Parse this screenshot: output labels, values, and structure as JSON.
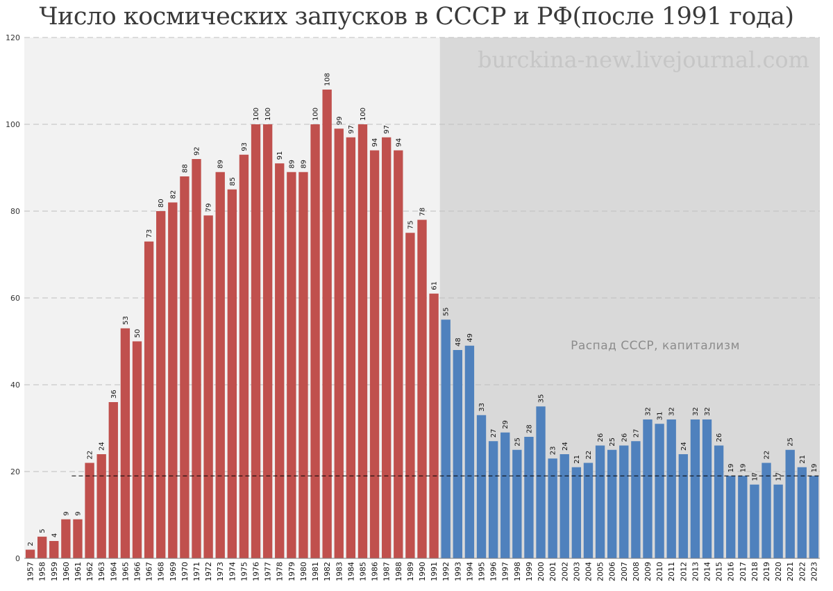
{
  "title": "Число космических запусков в СССР и РФ(после 1991 года)",
  "watermark": "burckina-new.livejournal.com",
  "annotation": "Распад СССР, капитализм",
  "colors": {
    "ussr_bar": "#c0504d",
    "rf_bar": "#4f81bd",
    "ussr_bg": "#f2f2f2",
    "rf_bg": "#d9d9d9",
    "grid": "#bfbfbf",
    "reference_line": "#000000"
  },
  "chart_data": {
    "type": "bar",
    "title": "Число космических запусков в СССР и РФ(после 1991 года)",
    "xlabel": "",
    "ylabel": "",
    "ylim": [
      0,
      120
    ],
    "yticks": [
      0,
      20,
      40,
      60,
      80,
      100,
      120
    ],
    "grid": true,
    "legend": "none",
    "categories": [
      "1957",
      "1958",
      "1959",
      "1960",
      "1961",
      "1962",
      "1963",
      "1964",
      "1965",
      "1966",
      "1967",
      "1968",
      "1969",
      "1970",
      "1971",
      "1972",
      "1973",
      "1974",
      "1975",
      "1976",
      "1977",
      "1978",
      "1979",
      "1980",
      "1981",
      "1982",
      "1983",
      "1984",
      "1985",
      "1986",
      "1987",
      "1988",
      "1989",
      "1990",
      "1991",
      "1992",
      "1993",
      "1994",
      "1995",
      "1996",
      "1997",
      "1998",
      "1999",
      "2000",
      "2001",
      "2002",
      "2003",
      "2004",
      "2005",
      "2006",
      "2007",
      "2008",
      "2009",
      "2010",
      "2011",
      "2012",
      "2013",
      "2014",
      "2015",
      "2016",
      "2017",
      "2018",
      "2019",
      "2020",
      "2021",
      "2022",
      "2023"
    ],
    "values": [
      2,
      5,
      4,
      9,
      9,
      22,
      24,
      36,
      53,
      50,
      73,
      80,
      82,
      88,
      92,
      79,
      89,
      85,
      93,
      100,
      100,
      91,
      89,
      89,
      100,
      108,
      99,
      97,
      100,
      94,
      97,
      94,
      75,
      78,
      61,
      55,
      48,
      49,
      33,
      27,
      29,
      25,
      28,
      35,
      23,
      24,
      21,
      22,
      26,
      25,
      26,
      27,
      32,
      31,
      32,
      24,
      32,
      32,
      26,
      19,
      19,
      17,
      22,
      17,
      25,
      21,
      19
    ],
    "split_after": "1991",
    "reference_line_value": 19,
    "reference_line_start": "1961"
  }
}
